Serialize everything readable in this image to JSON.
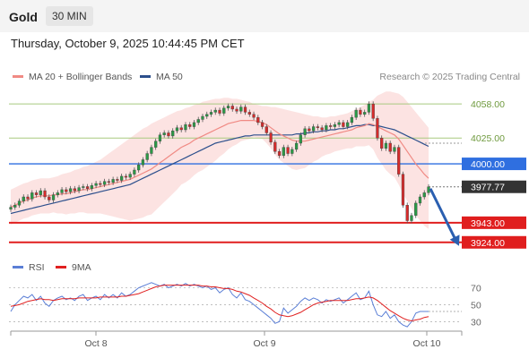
{
  "header": {
    "symbol": "Gold",
    "interval": "30 MIN"
  },
  "datetime": "Thursday, October 9, 2025 10:44:45 PM CET",
  "credit": "Research © 2025 Trading Central",
  "legend": {
    "ma20": {
      "label": "MA 20 + Bollinger Bands",
      "color": "#f08a84"
    },
    "ma50": {
      "label": "MA 50",
      "color": "#2c4f8c"
    }
  },
  "rsi_legend": {
    "rsi": {
      "label": "RSI",
      "color": "#5b7fd6"
    },
    "ma9": {
      "label": "9MA",
      "color": "#e02020"
    }
  },
  "chart_data": [
    {
      "type": "candlestick",
      "xlabel": "",
      "ylabel": "",
      "ylim": [
        3916,
        4072
      ],
      "x_ticks": [
        "Oct 8",
        "Oct 9",
        "Oct 10"
      ],
      "levels": [
        {
          "value": 4058.0,
          "label": "4058.00",
          "color": "#a8c97f",
          "style": "resistance"
        },
        {
          "value": 4025.0,
          "label": "4025.00",
          "color": "#a8c97f",
          "style": "resistance"
        },
        {
          "value": 4000.0,
          "label": "4000.00",
          "color": "#2f6fe0",
          "style": "pivot"
        },
        {
          "value": 3977.77,
          "label": "3977.77",
          "color": "#333333",
          "style": "last"
        },
        {
          "value": 3943.0,
          "label": "3943.00",
          "color": "#e01e1e",
          "style": "support"
        },
        {
          "value": 3924.0,
          "label": "3924.00",
          "color": "#e01e1e",
          "style": "support"
        }
      ],
      "forecast_arrow": {
        "from": 3977.77,
        "to": 3924.0,
        "color": "#2a5fb0"
      },
      "series_close": [
        3958,
        3960,
        3964,
        3968,
        3966,
        3972,
        3970,
        3974,
        3968,
        3965,
        3970,
        3972,
        3975,
        3973,
        3976,
        3974,
        3977,
        3978,
        3976,
        3979,
        3981,
        3980,
        3983,
        3982,
        3985,
        3984,
        3988,
        3987,
        3990,
        3994,
        3999,
        4004,
        4010,
        4016,
        4022,
        4028,
        4030,
        4027,
        4032,
        4035,
        4033,
        4038,
        4036,
        4040,
        4043,
        4046,
        4048,
        4050,
        4052,
        4049,
        4054,
        4056,
        4053,
        4051,
        4055,
        4050,
        4048,
        4045,
        4040,
        4036,
        4030,
        4021,
        4012,
        4008,
        4016,
        4010,
        4014,
        4020,
        4028,
        4034,
        4032,
        4036,
        4035,
        4033,
        4037,
        4036,
        4038,
        4040,
        4036,
        4040,
        4045,
        4052,
        4048,
        4050,
        4058,
        4044,
        4025,
        4015,
        4020,
        4012,
        4016,
        3990,
        3960,
        3945,
        3950,
        3962,
        3968,
        3972,
        3977.77
      ],
      "bollinger": {
        "ma20": [
          3958,
          3960,
          3962,
          3964,
          3965,
          3967,
          3968,
          3969,
          3969,
          3969,
          3970,
          3970,
          3971,
          3971,
          3972,
          3973,
          3974,
          3975,
          3975,
          3976,
          3977,
          3978,
          3979,
          3980,
          3981,
          3982,
          3983,
          3984,
          3985,
          3987,
          3989,
          3991,
          3993,
          3995,
          3998,
          4001,
          4004,
          4007,
          4010,
          4013,
          4016,
          4018,
          4020,
          4023,
          4025,
          4027,
          4029,
          4031,
          4033,
          4035,
          4037,
          4039,
          4040,
          4041,
          4042,
          4042,
          4042,
          4042,
          4041,
          4040,
          4038,
          4035,
          4032,
          4029,
          4027,
          4025,
          4023,
          4022,
          4022,
          4022,
          4023,
          4024,
          4025,
          4026,
          4027,
          4028,
          4029,
          4030,
          4031,
          4032,
          4033,
          4035,
          4036,
          4037,
          4039,
          4038,
          4036,
          4034,
          4032,
          4030,
          4028,
          4024,
          4018,
          4012,
          4006,
          4000,
          3995,
          3990,
          3986
        ],
        "upper": [
          3975,
          3977,
          3979,
          3981,
          3982,
          3984,
          3985,
          3986,
          3986,
          3986,
          3987,
          3988,
          3990,
          3991,
          3992,
          3994,
          3995,
          3997,
          3998,
          4000,
          4002,
          4004,
          4007,
          4010,
          4013,
          4016,
          4019,
          4022,
          4025,
          4028,
          4031,
          4034,
          4036,
          4039,
          4041,
          4043,
          4045,
          4047,
          4049,
          4051,
          4052,
          4054,
          4055,
          4057,
          4058,
          4060,
          4061,
          4062,
          4063,
          4063,
          4064,
          4064,
          4063,
          4063,
          4062,
          4061,
          4060,
          4058,
          4057,
          4056,
          4056,
          4055,
          4055,
          4054,
          4053,
          4052,
          4051,
          4050,
          4049,
          4048,
          4047,
          4046,
          4046,
          4045,
          4045,
          4046,
          4046,
          4047,
          4048,
          4049,
          4051,
          4053,
          4055,
          4057,
          4060,
          4062,
          4066,
          4068,
          4070,
          4070,
          4069,
          4068,
          4065,
          4060,
          4055,
          4050,
          4045,
          4040,
          4035
        ],
        "lower": [
          3941,
          3943,
          3945,
          3947,
          3948,
          3950,
          3951,
          3952,
          3952,
          3952,
          3953,
          3952,
          3952,
          3951,
          3952,
          3952,
          3953,
          3953,
          3952,
          3952,
          3952,
          3952,
          3951,
          3950,
          3949,
          3948,
          3947,
          3946,
          3945,
          3946,
          3947,
          3948,
          3950,
          3951,
          3955,
          3959,
          3963,
          3967,
          3971,
          3975,
          3980,
          3982,
          3985,
          3989,
          3992,
          3994,
          3997,
          4000,
          4003,
          4007,
          4010,
          4014,
          4017,
          4019,
          4022,
          4023,
          4024,
          4026,
          4025,
          4024,
          4020,
          4015,
          4009,
          4004,
          4001,
          3998,
          3995,
          3994,
          3995,
          3996,
          3999,
          4002,
          4004,
          4007,
          4009,
          4010,
          4012,
          4013,
          4014,
          4015,
          4015,
          4017,
          4017,
          4017,
          4018,
          4014,
          4006,
          4000,
          3994,
          3990,
          3987,
          3980,
          3971,
          3964,
          3957,
          3950,
          3945,
          3940,
          3937
        ]
      },
      "ma50": [
        3952,
        3953,
        3954,
        3955,
        3956,
        3957,
        3958,
        3959,
        3960,
        3961,
        3962,
        3963,
        3964,
        3965,
        3966,
        3967,
        3968,
        3969,
        3970,
        3971,
        3972,
        3973,
        3974,
        3975,
        3976,
        3977,
        3978,
        3979,
        3980,
        3982,
        3984,
        3986,
        3988,
        3990,
        3992,
        3994,
        3996,
        3998,
        4000,
        4002,
        4004,
        4006,
        4008,
        4010,
        4012,
        4014,
        4016,
        4018,
        4020,
        4021,
        4022,
        4023,
        4024,
        4025,
        4026,
        4027,
        4027,
        4028,
        4028,
        4028,
        4028,
        4028,
        4028,
        4028,
        4028,
        4028,
        4028,
        4029,
        4029,
        4030,
        4030,
        4031,
        4031,
        4032,
        4032,
        4033,
        4033,
        4034,
        4034,
        4035,
        4036,
        4037,
        4037,
        4038,
        4038,
        4037,
        4037,
        4036,
        4035,
        4034,
        4033,
        4031,
        4029,
        4027,
        4025,
        4023,
        4021,
        4019,
        4017
      ]
    },
    {
      "type": "line",
      "xlabel": "",
      "ylabel": "",
      "ylim": [
        22,
        80
      ],
      "y_ticks": [
        70,
        50,
        30
      ],
      "series": [
        {
          "name": "RSI",
          "values": [
            42,
            50,
            55,
            60,
            58,
            62,
            55,
            60,
            52,
            48,
            55,
            58,
            60,
            56,
            58,
            55,
            60,
            62,
            55,
            58,
            60,
            56,
            62,
            58,
            62,
            58,
            64,
            60,
            62,
            66,
            70,
            72,
            74,
            76,
            74,
            72,
            74,
            70,
            72,
            74,
            72,
            75,
            72,
            74,
            72,
            70,
            72,
            68,
            70,
            64,
            68,
            70,
            62,
            58,
            64,
            56,
            54,
            50,
            46,
            42,
            38,
            34,
            28,
            30,
            46,
            40,
            44,
            48,
            54,
            58,
            55,
            58,
            56,
            52,
            56,
            54,
            56,
            58,
            52,
            56,
            60,
            64,
            56,
            58,
            66,
            50,
            38,
            36,
            42,
            34,
            38,
            30,
            26,
            24,
            30,
            40,
            42,
            42,
            42
          ]
        },
        {
          "name": "9MA",
          "values": [
            48,
            49,
            50,
            52,
            54,
            55,
            56,
            57,
            56,
            56,
            55,
            56,
            57,
            57,
            57,
            57,
            58,
            58,
            58,
            58,
            58,
            59,
            59,
            59,
            59,
            59,
            60,
            60,
            61,
            62,
            63,
            65,
            67,
            69,
            71,
            72,
            73,
            73,
            73,
            73,
            73,
            73,
            73,
            73,
            73,
            72,
            72,
            71,
            71,
            70,
            69,
            69,
            68,
            66,
            65,
            63,
            61,
            58,
            55,
            52,
            48,
            45,
            41,
            38,
            37,
            36,
            37,
            39,
            41,
            44,
            47,
            50,
            52,
            53,
            54,
            55,
            55,
            55,
            55,
            55,
            56,
            57,
            57,
            58,
            59,
            58,
            55,
            51,
            47,
            43,
            40,
            37,
            34,
            32,
            31,
            32,
            33,
            35,
            36
          ]
        }
      ]
    }
  ]
}
